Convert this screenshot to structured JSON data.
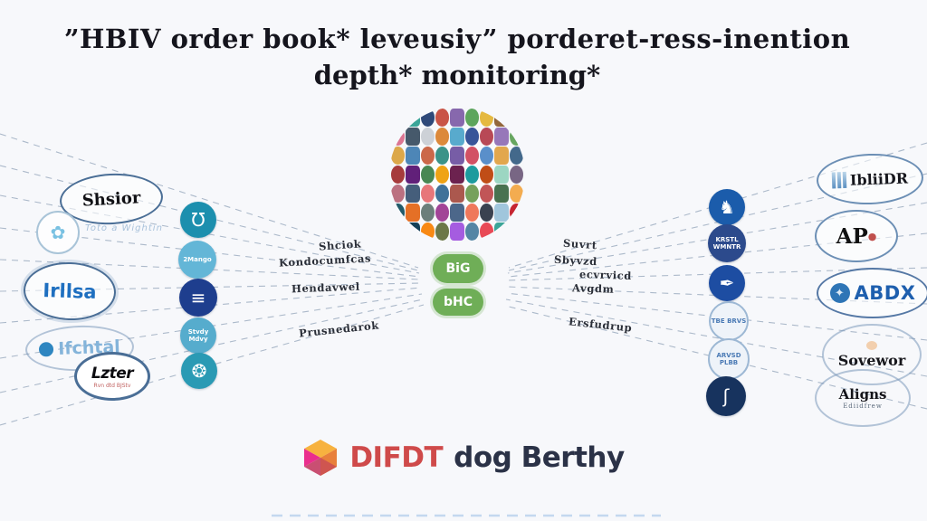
{
  "title": {
    "line1": "”HBIV order book* leveusiy” porderet-ress-inention",
    "line2": "depth* monitoring*"
  },
  "center": {
    "badge_top": "BiG",
    "badge_bottom": "bHC",
    "badge_color": "#6fae57",
    "cluster_colors": [
      "#e0862f",
      "#2a9d8f",
      "#1d3a6e",
      "#c44536",
      "#7d5ba6",
      "#4f9d4f",
      "#e3b330",
      "#8a5a2b",
      "#2b6cb0",
      "#d96a8a",
      "#364b5e",
      "#c9cdd4",
      "#d97f2a",
      "#4aa3c9",
      "#274690",
      "#b23a48",
      "#8e6bb3",
      "#5a9e52",
      "#d9a13b",
      "#3e7cb1",
      "#c75b39",
      "#2a8a7e",
      "#6b4f9e",
      "#ce4257",
      "#4c86c6",
      "#e09f3e",
      "#335c81",
      "#9e2a2b",
      "#540d6e",
      "#3a7d44",
      "#ee9b00",
      "#5f0f40",
      "#0a9396",
      "#bb3e03",
      "#94d2bd",
      "#6d597a",
      "#b56576",
      "#355070",
      "#e56b6f",
      "#2f6690",
      "#a44a3f",
      "#6a994e",
      "#bc4749",
      "#386641",
      "#f2a541",
      "#0f4c5c",
      "#e36414",
      "#5f7470",
      "#9a348e",
      "#3d5a80",
      "#ee6c4d",
      "#293241",
      "#98c1d9",
      "#c1121f",
      "#669bbc",
      "#003049",
      "#f77f00",
      "#606c38",
      "#9d4edd",
      "#457b9d",
      "#e63946",
      "#2a9d8f",
      "#ffb703"
    ]
  },
  "left": {
    "bubble_shsior": "Shsior",
    "bubble_irllsa": "Irllsa",
    "bubble_ifchtal": "Ifchtal",
    "bubble_lzter": "Lzter",
    "bubble_lzter_sub": "Rvn dtd BJStv",
    "badge_annotation": "Toto a Wightin",
    "icons": [
      {
        "name": "cup-icon",
        "glyph": "Ʊ",
        "bg": "#1c8fae"
      },
      {
        "name": "mango-icon",
        "text": "2Mango",
        "bg": "#63b6d7"
      },
      {
        "name": "lines-icon",
        "glyph": "≡",
        "bg": "#1e3e8e"
      },
      {
        "name": "smalltext-icon",
        "text": "Stvdy Mdvy",
        "bg": "#56accd"
      },
      {
        "name": "spiral-icon",
        "glyph": "❂",
        "bg": "#2a9ab4"
      }
    ]
  },
  "mid_labels": {
    "left": [
      "Shciok",
      "Kondocumfcas",
      "Hendavwel",
      "Prusnedarok"
    ],
    "right": [
      "Suvrt",
      "Sbyvzd",
      "ecvrvicd",
      "Avgdm",
      "Ersfudrup"
    ]
  },
  "right": {
    "icons": [
      {
        "name": "dove-icon",
        "glyph": "♞",
        "bg": "#1b5cab"
      },
      {
        "name": "seal-icon",
        "text": "KRSTL WMNTR",
        "bg": "#2c4a8c"
      },
      {
        "name": "emblem-icon",
        "glyph": "✒",
        "bg": "#1d4da2"
      },
      {
        "name": "stamp-tde-icon",
        "text": "TBE BRVS",
        "bg": "#eef3f9",
        "fg": "#4a7ab5",
        "outline": true
      },
      {
        "name": "stamp-arvsd-icon",
        "text": "ARVSD PLBB",
        "bg": "#eef3f9",
        "fg": "#4a7ab5",
        "outline": true
      },
      {
        "name": "swoosh-icon",
        "glyph": "ʃ",
        "bg": "#17335e"
      }
    ],
    "bubble_ibliidr": "IbliiDR",
    "bubble_ap": "AP",
    "bubble_ap_mark": "●",
    "bubble_abdx": "ABDX",
    "globe_glyph": "✦",
    "bubble_sovewor": "Sovewor",
    "bubble_aligns": "Aligns",
    "bubble_aligns_sub": "Ediidfrew"
  },
  "footer": {
    "brand_primary": "DIFDT",
    "brand_secondary": "dog Berthy",
    "primary_color": "#cf4a4a",
    "secondary_color": "#2b3247"
  }
}
